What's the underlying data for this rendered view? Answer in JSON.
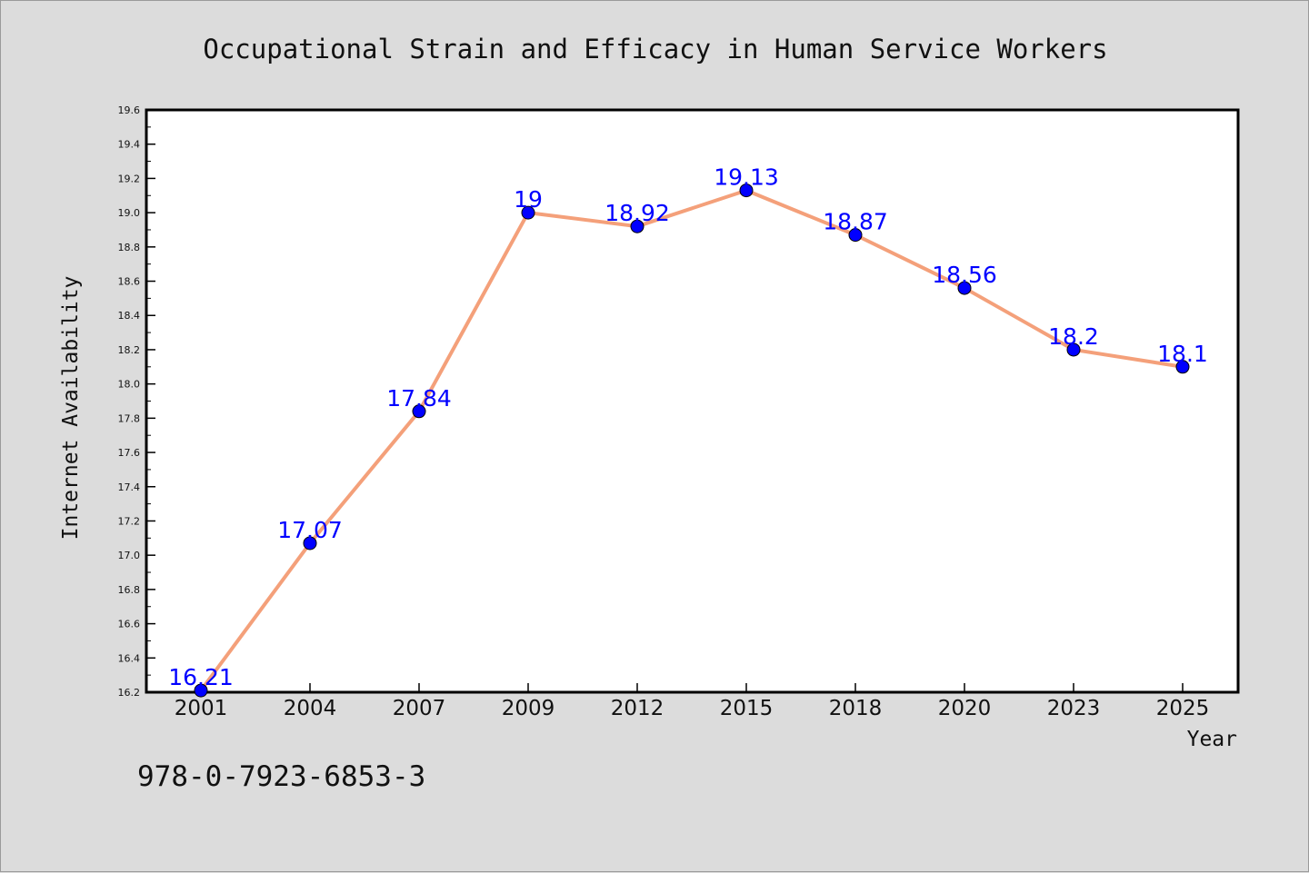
{
  "chart_data": {
    "type": "line",
    "title": "Occupational Strain and Efficacy in Human Service Workers",
    "xlabel": "Year",
    "ylabel": "Internet Availability",
    "categories": [
      "2001",
      "2004",
      "2007",
      "2009",
      "2012",
      "2015",
      "2018",
      "2020",
      "2023",
      "2025"
    ],
    "series": [
      {
        "values": [
          16.21,
          17.07,
          17.84,
          19,
          18.92,
          19.13,
          18.87,
          18.56,
          18.2,
          18.1
        ],
        "data_labels": [
          "16.21",
          "17.07",
          "17.84",
          "19",
          "18.92",
          "19.13",
          "18.87",
          "18.56",
          "18.2",
          "18.1"
        ],
        "line_color": "#f4a07a",
        "marker_color": "#0000ff"
      }
    ],
    "ylim": [
      16.2,
      19.6
    ],
    "yticks": [
      "16.2",
      "16.4",
      "16.6",
      "16.8",
      "17.0",
      "17.2",
      "17.4",
      "17.6",
      "17.8",
      "18.0",
      "18.2",
      "18.4",
      "18.6",
      "18.8",
      "19.0",
      "19.2",
      "19.4",
      "19.6"
    ],
    "grid": false,
    "legend": "none"
  },
  "footer_text": "978-0-7923-6853-3",
  "colors": {
    "background": "#dcdcdc",
    "plot_background": "#ffffff",
    "data_label": "#0000ff"
  }
}
